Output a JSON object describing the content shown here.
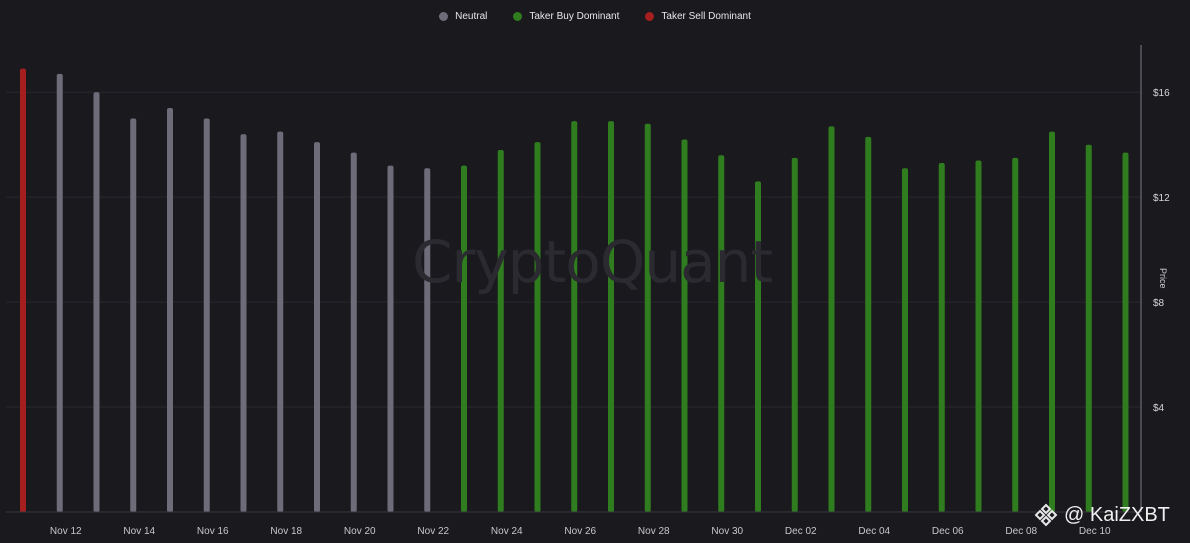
{
  "legend": {
    "items": [
      {
        "label": "Neutral",
        "color": "#6e6c78"
      },
      {
        "label": "Taker Buy Dominant",
        "color": "#2f7d1f"
      },
      {
        "label": "Taker Sell Dominant",
        "color": "#a61e1e"
      }
    ]
  },
  "watermark": "CryptoQuant",
  "credit": {
    "text": "@ KaiZXBT",
    "icon": "binance-diamond-icon"
  },
  "chart_data": {
    "type": "bar",
    "ylabel": "Price",
    "ylim": [
      0,
      17.8
    ],
    "y_ticks": [
      {
        "value": 4,
        "label": "$4"
      },
      {
        "value": 8,
        "label": "$8"
      },
      {
        "value": 12,
        "label": "$12"
      },
      {
        "value": 16,
        "label": "$16"
      }
    ],
    "x_ticks": [
      "Nov 12",
      "Nov 14",
      "Nov 16",
      "Nov 18",
      "Nov 20",
      "Nov 22",
      "Nov 24",
      "Nov 26",
      "Nov 28",
      "Nov 30",
      "Dec 02",
      "Dec 04",
      "Dec 06",
      "Dec 08",
      "Dec 10"
    ],
    "grid": true,
    "legend_position": "top-center",
    "series_colors": {
      "neutral": "#6e6c78",
      "buy": "#2f7d1f",
      "sell": "#a61e1e"
    },
    "bars": [
      {
        "date": "Nov 11",
        "value": 16.9,
        "category": "sell"
      },
      {
        "date": "Nov 12",
        "value": 16.7,
        "category": "neutral"
      },
      {
        "date": "Nov 13",
        "value": 16.0,
        "category": "neutral"
      },
      {
        "date": "Nov 14",
        "value": 15.0,
        "category": "neutral"
      },
      {
        "date": "Nov 15",
        "value": 15.4,
        "category": "neutral"
      },
      {
        "date": "Nov 16",
        "value": 15.0,
        "category": "neutral"
      },
      {
        "date": "Nov 17",
        "value": 14.4,
        "category": "neutral"
      },
      {
        "date": "Nov 18",
        "value": 14.5,
        "category": "neutral"
      },
      {
        "date": "Nov 19",
        "value": 14.1,
        "category": "neutral"
      },
      {
        "date": "Nov 20",
        "value": 13.7,
        "category": "neutral"
      },
      {
        "date": "Nov 21",
        "value": 13.2,
        "category": "neutral"
      },
      {
        "date": "Nov 22",
        "value": 13.1,
        "category": "neutral"
      },
      {
        "date": "Nov 23",
        "value": 13.2,
        "category": "buy"
      },
      {
        "date": "Nov 24",
        "value": 13.8,
        "category": "buy"
      },
      {
        "date": "Nov 25",
        "value": 14.1,
        "category": "buy"
      },
      {
        "date": "Nov 26",
        "value": 14.9,
        "category": "buy"
      },
      {
        "date": "Nov 27",
        "value": 14.9,
        "category": "buy"
      },
      {
        "date": "Nov 28",
        "value": 14.8,
        "category": "buy"
      },
      {
        "date": "Nov 29",
        "value": 14.2,
        "category": "buy"
      },
      {
        "date": "Nov 30",
        "value": 13.6,
        "category": "buy"
      },
      {
        "date": "Dec 01",
        "value": 12.6,
        "category": "buy"
      },
      {
        "date": "Dec 02",
        "value": 13.5,
        "category": "buy"
      },
      {
        "date": "Dec 03",
        "value": 14.7,
        "category": "buy"
      },
      {
        "date": "Dec 04",
        "value": 14.3,
        "category": "buy"
      },
      {
        "date": "Dec 05",
        "value": 13.1,
        "category": "buy"
      },
      {
        "date": "Dec 06",
        "value": 13.3,
        "category": "buy"
      },
      {
        "date": "Dec 07",
        "value": 13.4,
        "category": "buy"
      },
      {
        "date": "Dec 08",
        "value": 13.5,
        "category": "buy"
      },
      {
        "date": "Dec 09",
        "value": 14.5,
        "category": "buy"
      },
      {
        "date": "Dec 10",
        "value": 14.0,
        "category": "buy"
      },
      {
        "date": "Dec 11",
        "value": 13.7,
        "category": "buy"
      }
    ]
  }
}
